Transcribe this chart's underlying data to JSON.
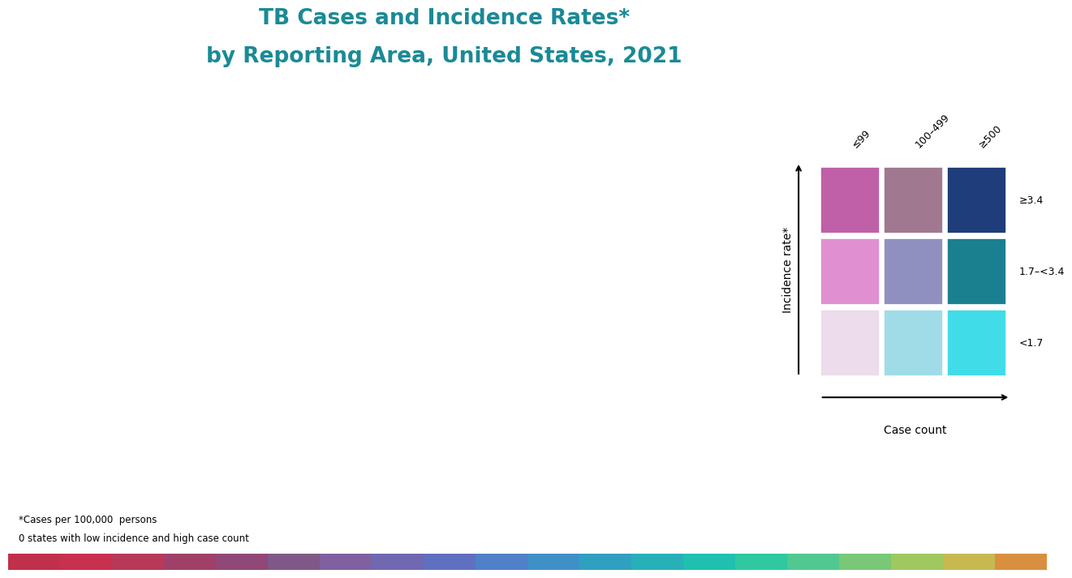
{
  "title_line1": "TB Cases and Incidence Rates*",
  "title_line2": "by Reporting Area, United States, 2021",
  "title_color": "#1a8a96",
  "background_color": "#ffffff",
  "footnote1": "*Cases per 100,000  persons",
  "footnote2": "0 states with low incidence and high case count",
  "state_colors": {
    "Alabama": "#d090c8",
    "Alaska": "#c060a8",
    "Arizona": "#d090c8",
    "Arkansas": "#d090c8",
    "California": "#1e3d7a",
    "Colorado": "#e0b8e0",
    "Connecticut": "#dcd8ec",
    "Delaware": "#dcd8ec",
    "Florida": "#2090b0",
    "Georgia": "#d090c8",
    "Hawaii": "#c060a8",
    "Idaho": "#dcd8ec",
    "Illinois": "#8090b8",
    "Indiana": "#dcd8ec",
    "Iowa": "#dcd8ec",
    "Kansas": "#dcd8ec",
    "Kentucky": "#dcd8ec",
    "Louisiana": "#d090c8",
    "Maine": "#dcd8ec",
    "Maryland": "#c060a8",
    "Massachusetts": "#dcd8ec",
    "Michigan": "#20b0c8",
    "Minnesota": "#8090b8",
    "Mississippi": "#d090c8",
    "Missouri": "#dcd8ec",
    "Montana": "#dcd8ec",
    "Nebraska": "#dcd8ec",
    "Nevada": "#d090c8",
    "New Hampshire": "#dcd8ec",
    "New Jersey": "#8090b8",
    "New Mexico": "#d090c8",
    "New York": "#1e3d7a",
    "North Carolina": "#d090c8",
    "North Dakota": "#c060a8",
    "Ohio": "#20b0c8",
    "Oklahoma": "#8090b8",
    "Oregon": "#8090b8",
    "Pennsylvania": "#20b0c8",
    "Rhode Island": "#dcd8ec",
    "South Carolina": "#d090c8",
    "South Dakota": "#dcd8ec",
    "Tennessee": "#d090c8",
    "Texas": "#1e3d7a",
    "Utah": "#dcd8ec",
    "Vermont": "#dcd8ec",
    "Virginia": "#8090b8",
    "Washington": "#8090b8",
    "West Virginia": "#dcd8ec",
    "Wisconsin": "#dcd8ec",
    "Wyoming": "#dcd8ec",
    "District of Columbia": "#c060a8"
  },
  "legend_colors": [
    [
      "#c060a8",
      "#a07890",
      "#1e3d7a"
    ],
    [
      "#e090d0",
      "#9090c0",
      "#1a8090"
    ],
    [
      "#ecdcec",
      "#a0dce8",
      "#40dce8"
    ]
  ],
  "legend_col_labels": [
    "≤99",
    "100–499",
    "≥500"
  ],
  "legend_row_labels": [
    "≥3.4",
    "1.7–<3.4",
    "<1.7"
  ],
  "legend_xlabel": "Case count",
  "legend_ylabel": "Incidence rate*",
  "bottom_bar_colors": [
    "#c0304a",
    "#c83050",
    "#b83858",
    "#a04068",
    "#904878",
    "#805888",
    "#8060a0",
    "#7068b0",
    "#6070c0",
    "#5080c8",
    "#4090c8",
    "#30a0c0",
    "#28b0b8",
    "#20c0b0",
    "#30c8a0",
    "#50c890",
    "#78c878",
    "#a0c860",
    "#c8b850",
    "#d89040"
  ]
}
